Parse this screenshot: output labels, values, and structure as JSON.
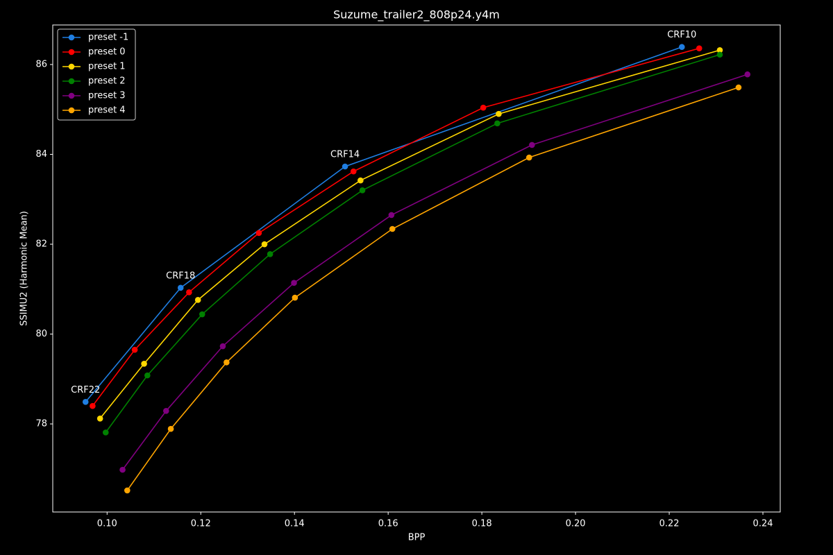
{
  "chart_data": {
    "type": "line",
    "title": "Suzume_trailer2_808p24.y4m",
    "xlabel": "BPP",
    "ylabel": "SSIMU2 (Harmonic Mean)",
    "xlim": [
      0.0884,
      0.2437
    ],
    "ylim": [
      76.04,
      86.88
    ],
    "xticks": [
      {
        "value": 0.1,
        "label": "0.10"
      },
      {
        "value": 0.12,
        "label": "0.12"
      },
      {
        "value": 0.14,
        "label": "0.14"
      },
      {
        "value": 0.16,
        "label": "0.16"
      },
      {
        "value": 0.18,
        "label": "0.18"
      },
      {
        "value": 0.2,
        "label": "0.20"
      },
      {
        "value": 0.22,
        "label": "0.22"
      },
      {
        "value": 0.24,
        "label": "0.24"
      }
    ],
    "yticks": [
      78,
      80,
      82,
      84,
      86
    ],
    "grid": false,
    "legend": "upper left",
    "series": [
      {
        "name": "preset -1",
        "color": "#1f7ee2",
        "x": [
          0.0954,
          0.1157,
          0.1508,
          0.2227
        ],
        "values": [
          78.49,
          81.03,
          83.73,
          86.39
        ]
      },
      {
        "name": "preset 0",
        "color": "#ff0000",
        "x": [
          0.0969,
          0.1059,
          0.1175,
          0.1324,
          0.1526,
          0.1803,
          0.2264
        ],
        "values": [
          78.4,
          79.65,
          80.93,
          82.25,
          83.62,
          85.04,
          86.36
        ]
      },
      {
        "name": "preset 1",
        "color": "#ffd700",
        "x": [
          0.0985,
          0.1079,
          0.1194,
          0.1336,
          0.1541,
          0.1836,
          0.2308
        ],
        "values": [
          78.12,
          79.34,
          80.76,
          82.0,
          83.42,
          84.9,
          86.32
        ]
      },
      {
        "name": "preset 2",
        "color": "#008000",
        "x": [
          0.0997,
          0.1086,
          0.1203,
          0.1348,
          0.1545,
          0.1833,
          0.2308
        ],
        "values": [
          77.81,
          79.08,
          80.44,
          81.78,
          83.2,
          84.69,
          86.22
        ]
      },
      {
        "name": "preset 3",
        "color": "#800080",
        "x": [
          0.1033,
          0.1126,
          0.1247,
          0.1399,
          0.1607,
          0.1907,
          0.2367
        ],
        "values": [
          76.98,
          78.29,
          79.73,
          81.14,
          82.65,
          84.21,
          85.78
        ]
      },
      {
        "name": "preset 4",
        "color": "#ffa500",
        "x": [
          0.1043,
          0.1136,
          0.1255,
          0.1401,
          0.1609,
          0.1901,
          0.2348
        ],
        "values": [
          76.52,
          77.89,
          79.37,
          80.81,
          82.34,
          83.93,
          85.49
        ]
      }
    ],
    "annotations": [
      {
        "text": "CRF22",
        "x": 0.0954,
        "y": 78.49
      },
      {
        "text": "CRF18",
        "x": 0.1157,
        "y": 81.03
      },
      {
        "text": "CRF14",
        "x": 0.1508,
        "y": 83.73
      },
      {
        "text": "CRF10",
        "x": 0.2227,
        "y": 86.39
      }
    ]
  }
}
